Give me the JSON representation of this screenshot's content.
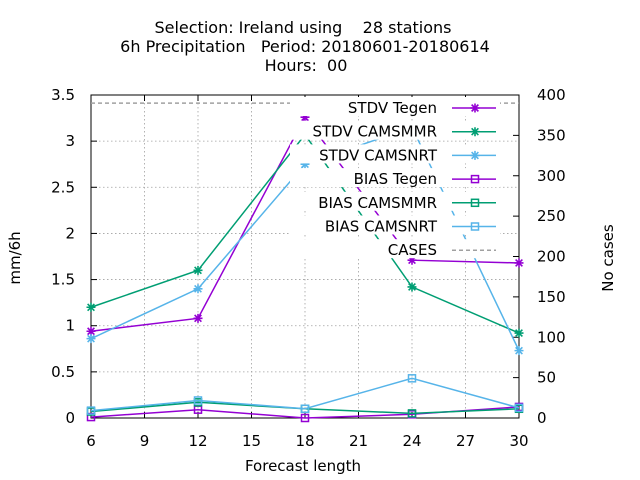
{
  "chart_data": {
    "type": "line",
    "title_lines": [
      "Selection: Ireland using    28 stations",
      "6h Precipitation   Period: 20180601-20180614",
      "Hours:  00"
    ],
    "xlabel": "Forecast length",
    "ylabel": "mm/6h",
    "y2label": "No cases",
    "x": [
      6,
      12,
      18,
      24,
      30
    ],
    "xlim": [
      6,
      30
    ],
    "xticks": [
      6,
      9,
      12,
      15,
      18,
      21,
      24,
      27,
      30
    ],
    "ylim": [
      0,
      3.5
    ],
    "yticks": [
      0,
      0.5,
      1,
      1.5,
      2,
      2.5,
      3,
      3.5
    ],
    "y2lim": [
      0,
      400
    ],
    "y2ticks": [
      0,
      50,
      100,
      150,
      200,
      250,
      300,
      350,
      400
    ],
    "grid": true,
    "legend_position": "top-right",
    "series": [
      {
        "name": "STDV Tegen",
        "color": "#9400d3",
        "marker": "star",
        "axis": "y",
        "values": [
          0.94,
          1.08,
          3.26,
          1.71,
          1.68
        ]
      },
      {
        "name": "STDV CAMSMMR",
        "color": "#009e73",
        "marker": "star",
        "axis": "y",
        "values": [
          1.2,
          1.6,
          3.07,
          1.42,
          0.92
        ]
      },
      {
        "name": "STDV CAMSNRT",
        "color": "#56b4e9",
        "marker": "star",
        "axis": "y",
        "values": [
          0.86,
          1.4,
          2.75,
          3.15,
          0.73
        ]
      },
      {
        "name": "BIAS Tegen",
        "color": "#9400d3",
        "marker": "square",
        "axis": "y",
        "values": [
          0.01,
          0.09,
          0.0,
          0.04,
          0.12
        ]
      },
      {
        "name": "BIAS CAMSMMR",
        "color": "#009e73",
        "marker": "square",
        "axis": "y",
        "values": [
          0.07,
          0.17,
          0.1,
          0.05,
          0.1
        ]
      },
      {
        "name": "BIAS CAMSNRT",
        "color": "#56b4e9",
        "marker": "square",
        "axis": "y",
        "values": [
          0.08,
          0.19,
          0.1,
          0.43,
          0.11
        ]
      },
      {
        "name": "CASES",
        "color": "#a0a0a0",
        "marker": "none",
        "axis": "y2",
        "dashed": true,
        "values": [
          390,
          390,
          390,
          390,
          390
        ]
      }
    ]
  }
}
